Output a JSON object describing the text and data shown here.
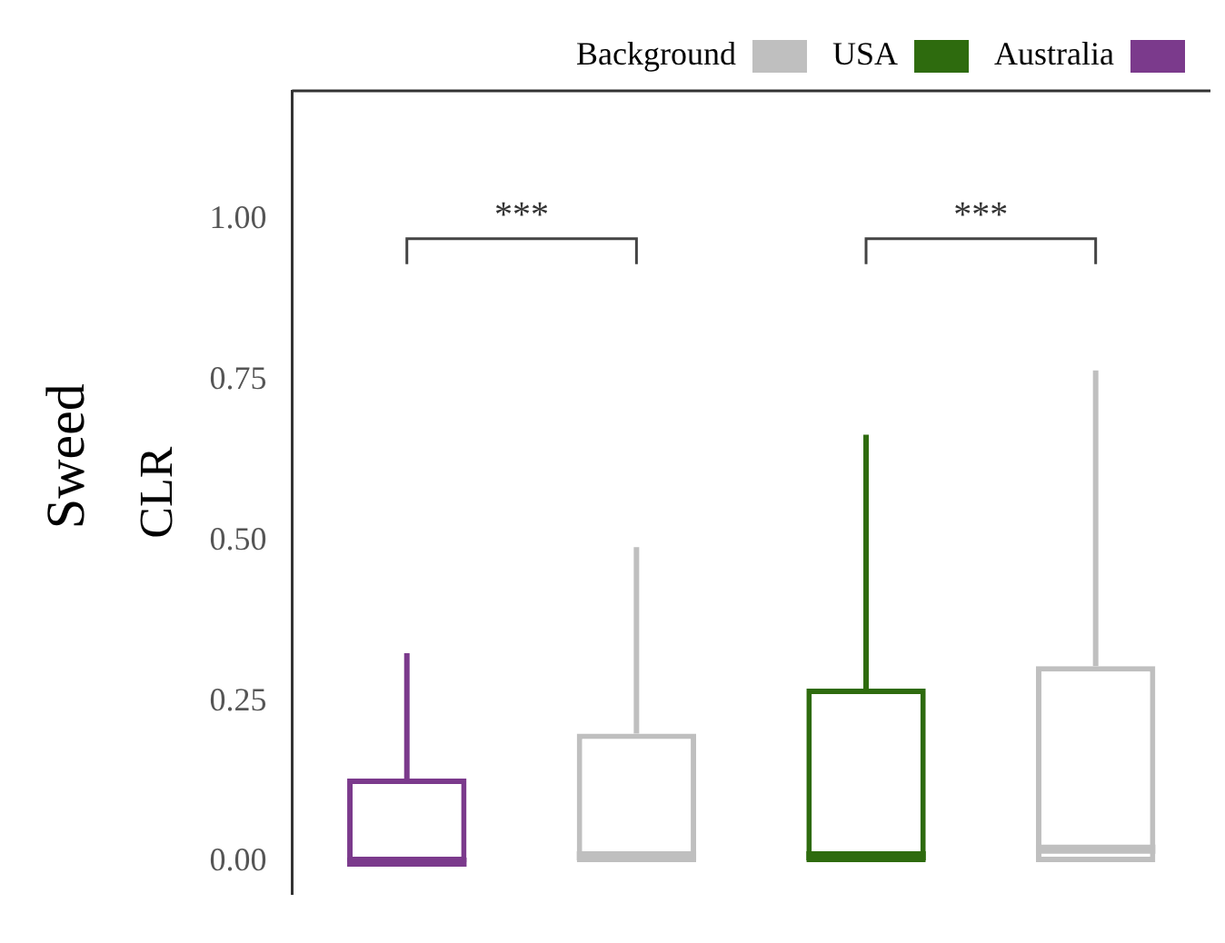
{
  "chart_data": {
    "type": "box",
    "title": "Sweed",
    "ylabel": "CLR",
    "categories": [
      null,
      null,
      null,
      null
    ],
    "series": [
      {
        "name": "Background",
        "color": "#bfbfbf",
        "boxes": [
          null,
          {
            "low": 0,
            "q1": 0,
            "median": 0.01,
            "q3": 0.2,
            "high": 0.49
          },
          null,
          {
            "low": 0,
            "q1": 0,
            "median": 0.02,
            "q3": 0.305,
            "high": 0.765
          }
        ]
      },
      {
        "name": "USA",
        "color": "#2e6b0e",
        "boxes": [
          null,
          null,
          {
            "low": 0,
            "q1": 0,
            "median": 0.01,
            "q3": 0.27,
            "high": 0.665
          },
          null
        ]
      },
      {
        "name": "Australia",
        "color": "#7b3a8c",
        "boxes": [
          {
            "low": 0,
            "q1": 0,
            "median": 0,
            "q3": 0.13,
            "high": 0.325
          },
          null,
          null,
          null
        ]
      }
    ],
    "ylim": [
      -0.05,
      1.2
    ],
    "yticks": [
      {
        "value": 0,
        "label": "0.00"
      },
      {
        "value": 0.25,
        "label": "0.25"
      },
      {
        "value": 0.5,
        "label": "0.50"
      },
      {
        "value": 0.75,
        "label": "0.75"
      },
      {
        "value": 1,
        "label": "1.00"
      }
    ],
    "annotations": [
      "***",
      "***"
    ],
    "legend": "top right",
    "grid": false,
    "tick_labels": "y"
  }
}
